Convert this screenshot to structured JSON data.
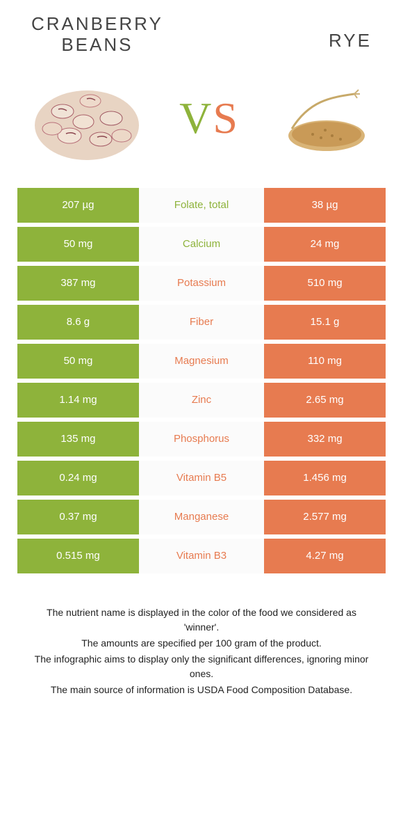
{
  "colors": {
    "left": "#8eb33b",
    "right": "#e77b50",
    "mid_bg": "#fbfbfb",
    "page_bg": "#ffffff"
  },
  "header": {
    "left_title": "CRANBERRY\nBEANS",
    "right_title": "RYE",
    "vs_left": "V",
    "vs_right": "S"
  },
  "images": {
    "left_alt": "cranberry beans pile",
    "right_alt": "rye grains with stalk"
  },
  "rows": [
    {
      "left": "207 µg",
      "label": "Folate, total",
      "right": "38 µg",
      "winner": "left"
    },
    {
      "left": "50 mg",
      "label": "Calcium",
      "right": "24 mg",
      "winner": "left"
    },
    {
      "left": "387 mg",
      "label": "Potassium",
      "right": "510 mg",
      "winner": "right"
    },
    {
      "left": "8.6 g",
      "label": "Fiber",
      "right": "15.1 g",
      "winner": "right"
    },
    {
      "left": "50 mg",
      "label": "Magnesium",
      "right": "110 mg",
      "winner": "right"
    },
    {
      "left": "1.14 mg",
      "label": "Zinc",
      "right": "2.65 mg",
      "winner": "right"
    },
    {
      "left": "135 mg",
      "label": "Phosphorus",
      "right": "332 mg",
      "winner": "right"
    },
    {
      "left": "0.24 mg",
      "label": "Vitamin B5",
      "right": "1.456 mg",
      "winner": "right"
    },
    {
      "left": "0.37 mg",
      "label": "Manganese",
      "right": "2.577 mg",
      "winner": "right"
    },
    {
      "left": "0.515 mg",
      "label": "Vitamin B3",
      "right": "4.27 mg",
      "winner": "right"
    }
  ],
  "footnotes": [
    "The nutrient name is displayed in the color of the food we considered as 'winner'.",
    "The amounts are specified per 100 gram of the product.",
    "The infographic aims to display only the significant differences, ignoring minor ones.",
    "The main source of information is USDA Food Composition Database."
  ]
}
